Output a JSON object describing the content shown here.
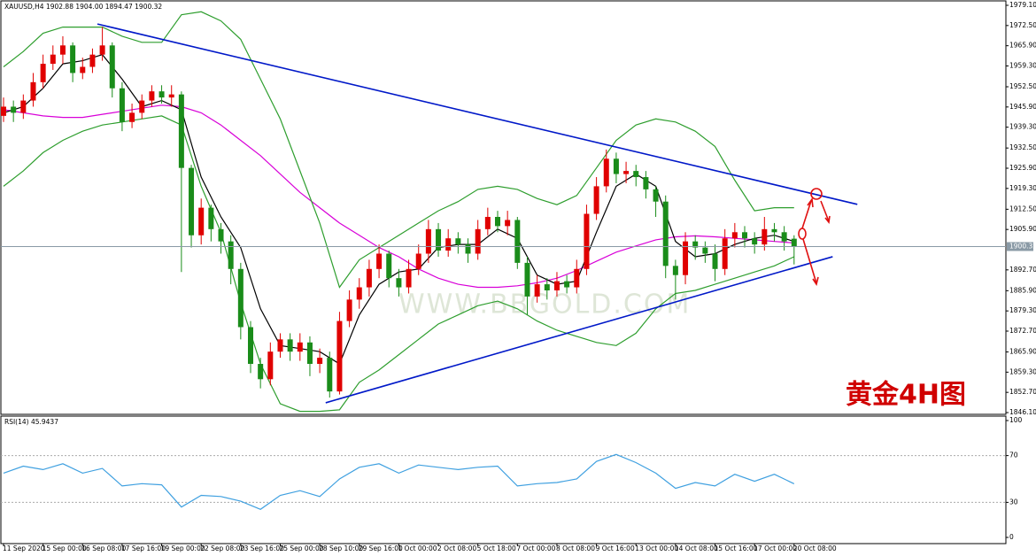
{
  "chart_data": [
    {
      "type": "candlestick",
      "title": "XAUUSD,H4 1902.88 1904.00 1894.47 1900.32",
      "annotation": "黄金4H图",
      "watermark": "WWW.BBGOLD.COM",
      "categories": [
        "11 Sep 2020",
        null,
        null,
        null,
        "15 Sep 00:00",
        null,
        null,
        null,
        "16 Sep 08:00",
        null,
        null,
        null,
        "17 Sep 16:00",
        null,
        null,
        null,
        "19 Sep 00:00",
        null,
        null,
        null,
        "22 Sep 08:00",
        null,
        null,
        null,
        "23 Sep 16:00",
        null,
        null,
        null,
        "25 Sep 00:00",
        null,
        null,
        null,
        "28 Sep 10:00",
        null,
        null,
        null,
        "29 Sep 16:00",
        null,
        null,
        null,
        "1 Oct 00:00",
        null,
        null,
        null,
        "2 Oct 08:00",
        null,
        null,
        null,
        "5 Oct 18:00",
        null,
        null,
        null,
        "7 Oct 00:00",
        null,
        null,
        null,
        "8 Oct 08:00",
        null,
        null,
        null,
        "9 Oct 16:00",
        null,
        null,
        null,
        "13 Oct 00:00",
        null,
        null,
        null,
        "14 Oct 08:00",
        null,
        null,
        null,
        "15 Oct 16:00",
        null,
        null,
        null,
        "17 Oct 00:00",
        null,
        null,
        null,
        "20 Oct 08:00"
      ],
      "open": [
        1943,
        1946,
        1944,
        1948,
        1954,
        1960,
        1963,
        1966,
        1957,
        1959,
        1963,
        1966,
        1952,
        1941,
        1944,
        1948,
        1951,
        1949,
        1950,
        1926,
        1904,
        1913,
        1906,
        1902,
        1893,
        1874,
        1862,
        1857,
        1866,
        1870,
        1866,
        1869,
        1862,
        1864,
        1853,
        1876,
        1883,
        1887,
        1893,
        1898,
        1890,
        1887,
        1893,
        1898,
        1906,
        1899,
        1903,
        1901,
        1898,
        1906,
        1910,
        1907,
        1909,
        1895,
        1884,
        1888,
        1886,
        1889,
        1887,
        1893,
        1911,
        1920,
        1929,
        1924,
        1925,
        1923,
        1919,
        1915,
        1894,
        1891,
        1902,
        1900,
        1898,
        1893,
        1903,
        1905,
        1903,
        1901,
        1906,
        1905,
        1902.88
      ],
      "high": [
        1949,
        1948,
        1950,
        1957,
        1963,
        1966,
        1969,
        1967,
        1962,
        1965,
        1972,
        1967,
        1954,
        1947,
        1950,
        1953,
        1953,
        1953,
        1951,
        1927,
        1916,
        1914,
        1908,
        1904,
        1895,
        1876,
        1864,
        1869,
        1872,
        1872,
        1872,
        1871,
        1867,
        1866,
        1879,
        1886,
        1890,
        1896,
        1901,
        1899,
        1893,
        1896,
        1901,
        1909,
        1908,
        1906,
        1905,
        1903,
        1909,
        1913,
        1912,
        1912,
        1910,
        1897,
        1891,
        1890,
        1892,
        1891,
        1896,
        1914,
        1923,
        1932,
        1931,
        1928,
        1927,
        1925,
        1920,
        1917,
        1896,
        1905,
        1904,
        1902,
        1901,
        1906,
        1908,
        1907,
        1905,
        1910,
        1908,
        1907,
        1904
      ],
      "low": [
        1941,
        1941,
        1942,
        1946,
        1952,
        1958,
        1960,
        1954,
        1955,
        1957,
        1961,
        1949,
        1938,
        1939,
        1942,
        1946,
        1947,
        1946,
        1892,
        1900,
        1901,
        1902,
        1898,
        1888,
        1870,
        1859,
        1854,
        1855,
        1864,
        1863,
        1863,
        1858,
        1859,
        1851,
        1852,
        1874,
        1880,
        1884,
        1890,
        1887,
        1884,
        1885,
        1891,
        1895,
        1897,
        1897,
        1898,
        1895,
        1896,
        1904,
        1905,
        1904,
        1893,
        1878,
        1882,
        1883,
        1884,
        1885,
        1885,
        1891,
        1909,
        1918,
        1921,
        1921,
        1920,
        1916,
        1910,
        1890,
        1883,
        1888,
        1896,
        1895,
        1889,
        1891,
        1900,
        1900,
        1898,
        1899,
        1902,
        1899,
        1894.47
      ],
      "close": [
        1946,
        1944,
        1948,
        1954,
        1960,
        1963,
        1966,
        1957,
        1959,
        1963,
        1966,
        1952,
        1941,
        1944,
        1948,
        1951,
        1949,
        1950,
        1926,
        1904,
        1913,
        1906,
        1902,
        1893,
        1874,
        1862,
        1857,
        1866,
        1870,
        1866,
        1869,
        1862,
        1864,
        1853,
        1876,
        1883,
        1887,
        1893,
        1898,
        1890,
        1887,
        1893,
        1898,
        1906,
        1899,
        1903,
        1901,
        1898,
        1906,
        1910,
        1907,
        1909,
        1895,
        1884,
        1888,
        1886,
        1889,
        1887,
        1893,
        1911,
        1920,
        1929,
        1924,
        1925,
        1923,
        1919,
        1915,
        1894,
        1891,
        1902,
        1900,
        1898,
        1893,
        1903,
        1905,
        1903,
        1901,
        1906,
        1905,
        1902,
        1900.32
      ],
      "up_color": "#e00000",
      "down_color": "#1a8c1a",
      "overlay_x": [
        0,
        2,
        4,
        6,
        8,
        10,
        12,
        14,
        16,
        18,
        20,
        22,
        24,
        26,
        28,
        30,
        32,
        34,
        36,
        38,
        40,
        42,
        44,
        46,
        48,
        50,
        52,
        54,
        56,
        58,
        60,
        62,
        64,
        66,
        68,
        70,
        72,
        74,
        76,
        78,
        80
      ],
      "overlays": [
        {
          "color": "#d800d8",
          "values": [
            1945,
            1944,
            1943,
            1942.5,
            1942.5,
            1943.5,
            1944.5,
            1945.5,
            1946.5,
            1946,
            1944,
            1940,
            1935,
            1930,
            1924,
            1918,
            1913,
            1908,
            1904,
            1900,
            1897,
            1893,
            1890,
            1888,
            1887,
            1887,
            1887.5,
            1888.5,
            1890,
            1892.5,
            1895.5,
            1898.5,
            1900.5,
            1902.5,
            1903.5,
            1903.8,
            1903.5,
            1903,
            1902.5,
            1902,
            1901.5
          ]
        },
        {
          "color": "#000000",
          "values": [
            1944,
            1946,
            1952,
            1960,
            1961,
            1963,
            1955,
            1946,
            1948,
            1945,
            1923,
            1910,
            1900,
            1880,
            1868,
            1867,
            1866,
            1862,
            1878,
            1888,
            1892,
            1893,
            1900,
            1901,
            1901,
            1906,
            1903,
            1891,
            1888,
            1889,
            1905,
            1920,
            1924,
            1920,
            1902,
            1897,
            1898,
            1901,
            1903,
            1904,
            1902
          ]
        },
        {
          "color": "#2e9e2e",
          "values": [
            1959,
            1964,
            1970,
            1972,
            1972,
            1972,
            1969,
            1967,
            1967,
            1976,
            1977,
            1974,
            1968,
            1955,
            1942,
            1925,
            1908,
            1887,
            1896,
            1900,
            1904,
            1908,
            1912,
            1915,
            1919,
            1920,
            1919,
            1916,
            1914,
            1917,
            1926,
            1935,
            1940,
            1942,
            1941,
            1938,
            1933,
            1922,
            1912,
            1913,
            1913
          ]
        },
        {
          "color": "#2e9e2e",
          "values": [
            1920,
            1925,
            1931,
            1935,
            1938,
            1940,
            1941,
            1942,
            1943,
            1940,
            1920,
            1905,
            1882,
            1862,
            1849,
            1846.5,
            1846.5,
            1847,
            1856,
            1860,
            1865,
            1870,
            1875,
            1878,
            1881,
            1882.5,
            1880,
            1876,
            1873,
            1871,
            1869,
            1868,
            1872,
            1880,
            1885,
            1886,
            1888,
            1890,
            1892,
            1894,
            1897
          ]
        }
      ],
      "trendlines": [
        {
          "color": "#0018c8",
          "x": [
            9.5,
            86.4
          ],
          "y": [
            1973.0,
            1914.1
          ]
        },
        {
          "color": "#0018c8",
          "x": [
            32.6,
            83.9
          ],
          "y": [
            1849.3,
            1897.0
          ]
        }
      ],
      "last_price": 1900.32,
      "ylim": [
        1846.1,
        1979.1
      ],
      "yticks": [
        {
          "value": 1979.1,
          "label": "1979.10"
        },
        {
          "value": 1972.5,
          "label": "1972.50"
        },
        {
          "value": 1965.9,
          "label": "1965.90"
        },
        {
          "value": 1959.3,
          "label": "1959.30"
        },
        {
          "value": 1952.5,
          "label": "1952.50"
        },
        {
          "value": 1945.9,
          "label": "1945.90"
        },
        {
          "value": 1939.3,
          "label": "1939.30"
        },
        {
          "value": 1932.5,
          "label": "1932.50"
        },
        {
          "value": 1925.9,
          "label": "1925.90"
        },
        {
          "value": 1919.3,
          "label": "1919.30"
        },
        {
          "value": 1912.5,
          "label": "1912.50"
        },
        {
          "value": 1905.9,
          "label": "1905.90"
        },
        {
          "value": 1892.7,
          "label": "1892.70"
        },
        {
          "value": 1885.9,
          "label": "1885.90"
        },
        {
          "value": 1879.3,
          "label": "1879.30"
        },
        {
          "value": 1872.7,
          "label": "1872.70"
        },
        {
          "value": 1865.9,
          "label": "1865.90"
        },
        {
          "value": 1859.3,
          "label": "1859.30"
        },
        {
          "value": 1852.7,
          "label": "1852.70"
        },
        {
          "value": 1846.1,
          "label": "1846.10"
        }
      ]
    },
    {
      "type": "line",
      "title": "RSI(14) 45.9437",
      "x": [
        0,
        2,
        4,
        6,
        8,
        10,
        12,
        14,
        16,
        18,
        20,
        22,
        24,
        26,
        28,
        30,
        32,
        34,
        36,
        38,
        40,
        42,
        44,
        46,
        48,
        50,
        52,
        54,
        56,
        58,
        60,
        62,
        64,
        66,
        68,
        70,
        72,
        74,
        76,
        78,
        80
      ],
      "values": [
        55,
        61,
        58,
        63,
        55,
        59,
        44,
        46,
        45,
        26,
        36,
        35,
        31,
        24,
        36,
        40,
        35,
        50,
        60,
        63,
        55,
        62,
        60,
        58,
        60,
        61,
        44,
        46,
        47,
        50,
        65,
        71,
        64,
        55,
        42,
        47,
        44,
        54,
        48,
        54,
        45.9437
      ],
      "color": "#3fa0e0",
      "ylim": [
        0,
        100
      ],
      "yticks": [
        0,
        30,
        70,
        100
      ],
      "levels": [
        30,
        70
      ]
    }
  ]
}
